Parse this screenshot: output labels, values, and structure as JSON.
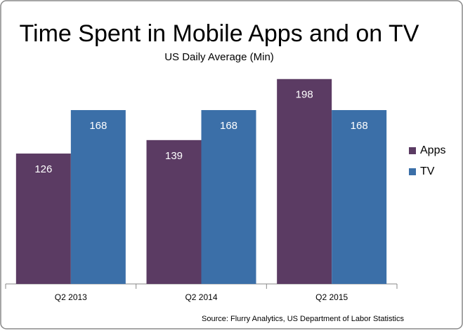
{
  "chart_data": {
    "type": "bar",
    "title": "Time Spent in Mobile Apps and on TV",
    "subtitle": "US Daily Average (Min)",
    "source": "Source: Flurry Analytics, US Department of Labor Statistics",
    "categories": [
      "Q2 2013",
      "Q2 2014",
      "Q2 2015"
    ],
    "series": [
      {
        "name": "Apps",
        "color": "#5b3b63",
        "values": [
          126,
          139,
          198
        ]
      },
      {
        "name": "TV",
        "color": "#3b6fa8",
        "values": [
          168,
          168,
          168
        ]
      }
    ],
    "ylim": [
      0,
      250
    ],
    "legend": "right"
  }
}
